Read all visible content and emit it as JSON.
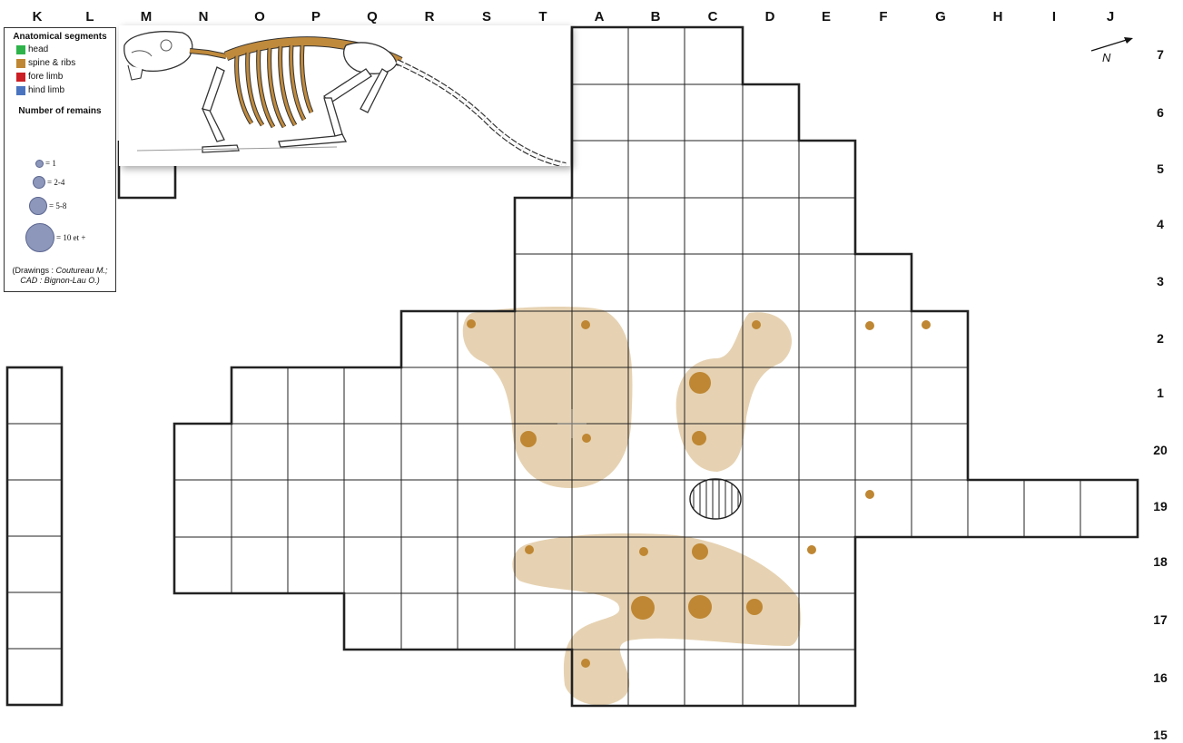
{
  "column_labels": [
    "K",
    "L",
    "M",
    "N",
    "O",
    "P",
    "Q",
    "R",
    "S",
    "T",
    "A",
    "B",
    "C",
    "D",
    "E",
    "F",
    "G",
    "H",
    "I",
    "J"
  ],
  "row_labels": [
    "7",
    "6",
    "5",
    "4",
    "3",
    "2",
    "1",
    "20",
    "19",
    "18",
    "17",
    "16",
    "15"
  ],
  "legend": {
    "segments_title": "Anatomical segments",
    "segments": [
      {
        "label": "head",
        "color": "#2db34a"
      },
      {
        "label": "spine & ribs",
        "color": "#bf8733"
      },
      {
        "label": "fore limb",
        "color": "#cc1f25"
      },
      {
        "label": "hind limb",
        "color": "#4a74c0"
      }
    ],
    "count_title": "Number of remains",
    "counts": [
      {
        "label": "= 1"
      },
      {
        "label": "= 2-4"
      },
      {
        "label": "= 5-8"
      },
      {
        "label": "= 10 et +"
      }
    ],
    "credit_prefix": "(Drawings :",
    "credit_line1": " Coutureau M.;",
    "credit_line2": "CAD : Bignon-Lau O.)"
  },
  "north_label": "N",
  "colors": {
    "spine_ribs": "#bf8733",
    "zone_fill": "#e6d2b2",
    "bubble": "#8c97bb"
  },
  "remains": [
    {
      "square": "S2",
      "segment": "spine & ribs",
      "count_class": "= 1"
    },
    {
      "square": "A2",
      "segment": "spine & ribs",
      "count_class": "= 1"
    },
    {
      "square": "D2",
      "segment": "spine & ribs",
      "count_class": "= 1"
    },
    {
      "square": "F2",
      "segment": "spine & ribs",
      "count_class": "= 1"
    },
    {
      "square": "G2",
      "segment": "spine & ribs",
      "count_class": "= 1"
    },
    {
      "square": "C1",
      "segment": "spine & ribs",
      "count_class": "= 5-8"
    },
    {
      "square": "T20",
      "segment": "spine & ribs",
      "count_class": "= 2-4"
    },
    {
      "square": "A20",
      "segment": "spine & ribs",
      "count_class": "= 1"
    },
    {
      "square": "C20",
      "segment": "spine & ribs",
      "count_class": "= 2-4"
    },
    {
      "square": "F19",
      "segment": "spine & ribs",
      "count_class": "= 1"
    },
    {
      "square": "T18",
      "segment": "spine & ribs",
      "count_class": "= 1"
    },
    {
      "square": "B18",
      "segment": "spine & ribs",
      "count_class": "= 1"
    },
    {
      "square": "C18",
      "segment": "spine & ribs",
      "count_class": "= 2-4"
    },
    {
      "square": "E18",
      "segment": "spine & ribs",
      "count_class": "= 1"
    },
    {
      "square": "B17",
      "segment": "spine & ribs",
      "count_class": "= 5-8"
    },
    {
      "square": "C17",
      "segment": "spine & ribs",
      "count_class": "= 5-8"
    },
    {
      "square": "D17",
      "segment": "spine & ribs",
      "count_class": "= 2-4"
    },
    {
      "square": "A16",
      "segment": "spine & ribs",
      "count_class": "= 1"
    }
  ]
}
